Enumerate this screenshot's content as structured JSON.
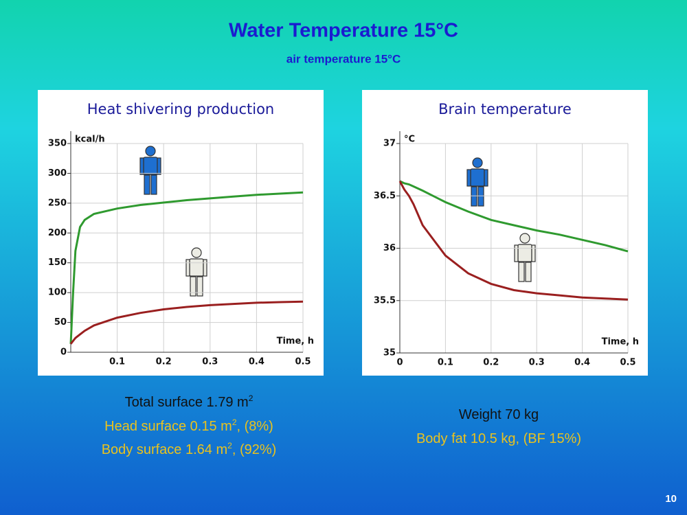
{
  "slide": {
    "title": "Water Temperature 15°C",
    "subtitle": "air temperature 15°C",
    "left_notes": [
      [
        "Total surface  1.79 m",
        "2"
      ],
      [
        "Head surface  0.15 m",
        "2",
        ",  (8%)"
      ],
      [
        "Body surface  1.64 m",
        "2",
        ",  (92%)"
      ]
    ],
    "right_notes": [
      "Weight  70 kg",
      "Body fat  10.5 kg,  (BF 15%)"
    ],
    "page_number": "10"
  },
  "chart_data": [
    {
      "type": "line",
      "title": "Heat shivering production",
      "ylabel": "kcal/h",
      "xlabel": "Time, h",
      "x": [
        0,
        0.005,
        0.01,
        0.02,
        0.03,
        0.05,
        0.1,
        0.15,
        0.2,
        0.25,
        0.3,
        0.35,
        0.4,
        0.45,
        0.5
      ],
      "series": [
        {
          "color": "#2f9a2f",
          "values": [
            14,
            100,
            170,
            210,
            222,
            232,
            241,
            247,
            251,
            255,
            258,
            261,
            264,
            266,
            268
          ]
        },
        {
          "color": "#9a1f1f",
          "values": [
            14,
            19,
            24,
            30,
            36,
            45,
            58,
            66,
            72,
            76,
            79,
            81,
            83,
            84,
            85
          ]
        }
      ],
      "xlim": [
        0,
        0.5
      ],
      "xticks": [
        0.1,
        0.2,
        0.3,
        0.4,
        0.5
      ],
      "ylim": [
        0,
        350
      ],
      "yticks": [
        0,
        50,
        100,
        150,
        200,
        250,
        300,
        350
      ],
      "grid": true
    },
    {
      "type": "line",
      "title": "Brain temperature",
      "ylabel": "°C",
      "xlabel": "Time, h",
      "x": [
        0,
        0.005,
        0.01,
        0.02,
        0.03,
        0.05,
        0.1,
        0.15,
        0.2,
        0.25,
        0.3,
        0.35,
        0.4,
        0.45,
        0.5
      ],
      "series": [
        {
          "color": "#2f9a2f",
          "values": [
            36.64,
            36.63,
            36.62,
            36.61,
            36.59,
            36.55,
            36.44,
            36.35,
            36.27,
            36.22,
            36.17,
            36.13,
            36.08,
            36.03,
            35.97
          ]
        },
        {
          "color": "#9a1f1f",
          "values": [
            36.64,
            36.6,
            36.56,
            36.5,
            36.42,
            36.22,
            35.93,
            35.76,
            35.66,
            35.6,
            35.57,
            35.55,
            35.53,
            35.52,
            35.51
          ]
        }
      ],
      "xlim": [
        0,
        0.5
      ],
      "xticks": [
        0,
        0.1,
        0.2,
        0.3,
        0.4,
        0.5
      ],
      "ylim": [
        35,
        37
      ],
      "yticks": [
        35,
        35.5,
        36,
        36.5,
        37
      ],
      "grid": true
    }
  ]
}
